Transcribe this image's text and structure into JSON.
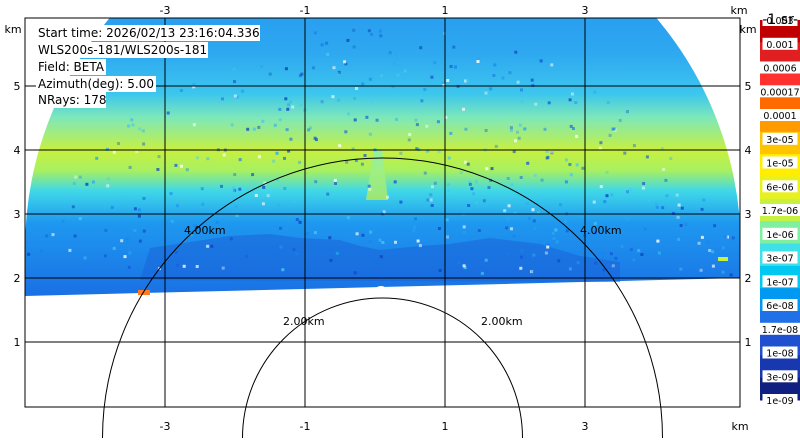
{
  "info": {
    "start_time": "Start time: 2026/02/13 23:16:04.336",
    "instrument": "WLS200s-181/WLS200s-181",
    "field": "Field: BETA",
    "azimuth": "Azimuth(deg): 5.00",
    "nrays": "NRays: 178"
  },
  "units": {
    "x_left": "km",
    "x_right": "km",
    "y_left": "km",
    "y_right": "km",
    "colorbar": "-1 sr-"
  },
  "range_labels": {
    "outer_left": "4.00km",
    "outer_right": "4.00km",
    "inner_left": "2.00km",
    "inner_right": "2.00km"
  },
  "colorbar": {
    "labels": [
      "0.003",
      "0.001",
      "0.0006",
      "0.00017",
      "0.0001",
      "3e-05",
      "1e-05",
      "6e-06",
      "1.7e-06",
      "1e-06",
      "3e-07",
      "1e-07",
      "6e-08",
      "1.7e-08",
      "1e-08",
      "3e-09",
      "1e-09"
    ],
    "colors": [
      "#c00000",
      "#e02020",
      "#ff3030",
      "#ff6a00",
      "#ff9a00",
      "#ffc400",
      "#ffee00",
      "#e8f020",
      "#c8f040",
      "#7ef0a0",
      "#40e0e8",
      "#00c8f0",
      "#0098f0",
      "#2070e8",
      "#2050d0",
      "#1838b0",
      "#102080"
    ]
  },
  "chart_data": {
    "type": "heatmap",
    "title": "",
    "xlabel": "km",
    "ylabel": "km",
    "x_ticks": [
      -3,
      -1,
      1,
      3
    ],
    "y_ticks": [
      1,
      2,
      3,
      4,
      5
    ],
    "xlim": [
      -5,
      5
    ],
    "ylim": [
      0,
      6.2
    ],
    "grid": true,
    "range_rings_km": [
      2.0,
      4.0
    ],
    "field": "BETA",
    "azimuth_deg": 5.0,
    "nrays": 178,
    "colorbar_unit": "-1 sr-",
    "colorbar_labels": [
      "0.003",
      "0.001",
      "0.0006",
      "0.00017",
      "0.0001",
      "3e-05",
      "1e-05",
      "6e-06",
      "1.7e-06",
      "1e-06",
      "3e-07",
      "1e-07",
      "6e-08",
      "1.7e-08",
      "1e-08",
      "3e-09",
      "1e-09"
    ]
  }
}
